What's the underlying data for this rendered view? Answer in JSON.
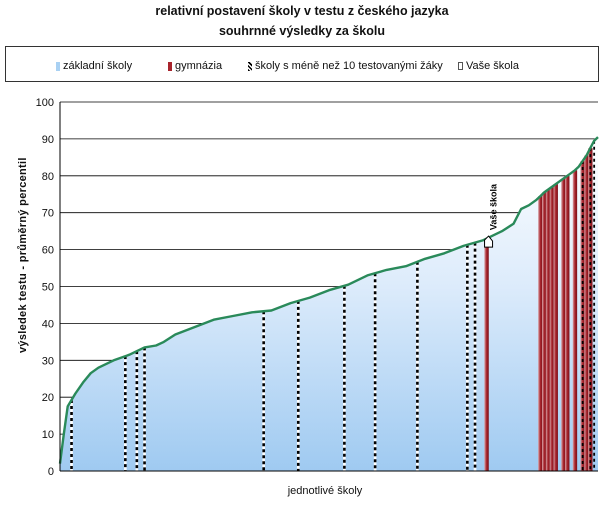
{
  "chart_data": {
    "type": "area",
    "title": "relativní postavení školy v testu z českého jazyka",
    "subtitle": "souhrnné výsledky za školu",
    "xlabel": "jednotlivé školy",
    "ylabel": "výsledek testu - průměrný percentil",
    "ylim": [
      0,
      100
    ],
    "y_ticks": [
      "0",
      "10",
      "20",
      "30",
      "40",
      "50",
      "60",
      "70",
      "80",
      "90",
      "100"
    ],
    "grid": "horizontal",
    "legend_position": "top",
    "legend": [
      {
        "label": "základní školy",
        "color": "#a9d1f3"
      },
      {
        "label": "gymnázia",
        "color": "#a8242c"
      },
      {
        "label": "školy s méně než 10 testovanými žáky",
        "color": "#000000"
      },
      {
        "label": "Vaše škola",
        "color": "#ffffff"
      }
    ],
    "school_count": 140,
    "curve": {
      "x_index": [
        0,
        1,
        2,
        4,
        6,
        8,
        10,
        14,
        18,
        22,
        25,
        27,
        30,
        35,
        40,
        45,
        50,
        55,
        60,
        65,
        70,
        75,
        80,
        85,
        90,
        95,
        100,
        105,
        110,
        115,
        118,
        120,
        122,
        124,
        125,
        126,
        128,
        130,
        132,
        134,
        135,
        136,
        137,
        138,
        139,
        140
      ],
      "values": [
        2,
        10,
        17.5,
        21,
        24,
        26.5,
        28,
        30,
        31.5,
        33.5,
        34,
        35,
        37,
        39,
        41,
        42,
        43,
        43.5,
        45.5,
        47,
        49,
        50.5,
        53,
        54.5,
        55.5,
        57.5,
        59,
        61,
        62.5,
        65,
        67,
        71,
        72,
        73.5,
        74.5,
        75.5,
        77,
        78.5,
        80,
        81.5,
        82.5,
        84,
        85.5,
        87.5,
        89.5,
        90.5
      ]
    },
    "small_schools_idx": [
      3,
      17,
      20,
      22,
      53,
      62,
      74,
      82,
      93,
      106,
      108
    ],
    "gymnazia_idx": [
      111,
      125,
      126,
      127,
      128,
      129,
      131,
      132,
      134,
      136,
      137,
      138
    ],
    "your_school": {
      "idx": 111,
      "value": 61.5,
      "label": "Vaše škola"
    }
  }
}
